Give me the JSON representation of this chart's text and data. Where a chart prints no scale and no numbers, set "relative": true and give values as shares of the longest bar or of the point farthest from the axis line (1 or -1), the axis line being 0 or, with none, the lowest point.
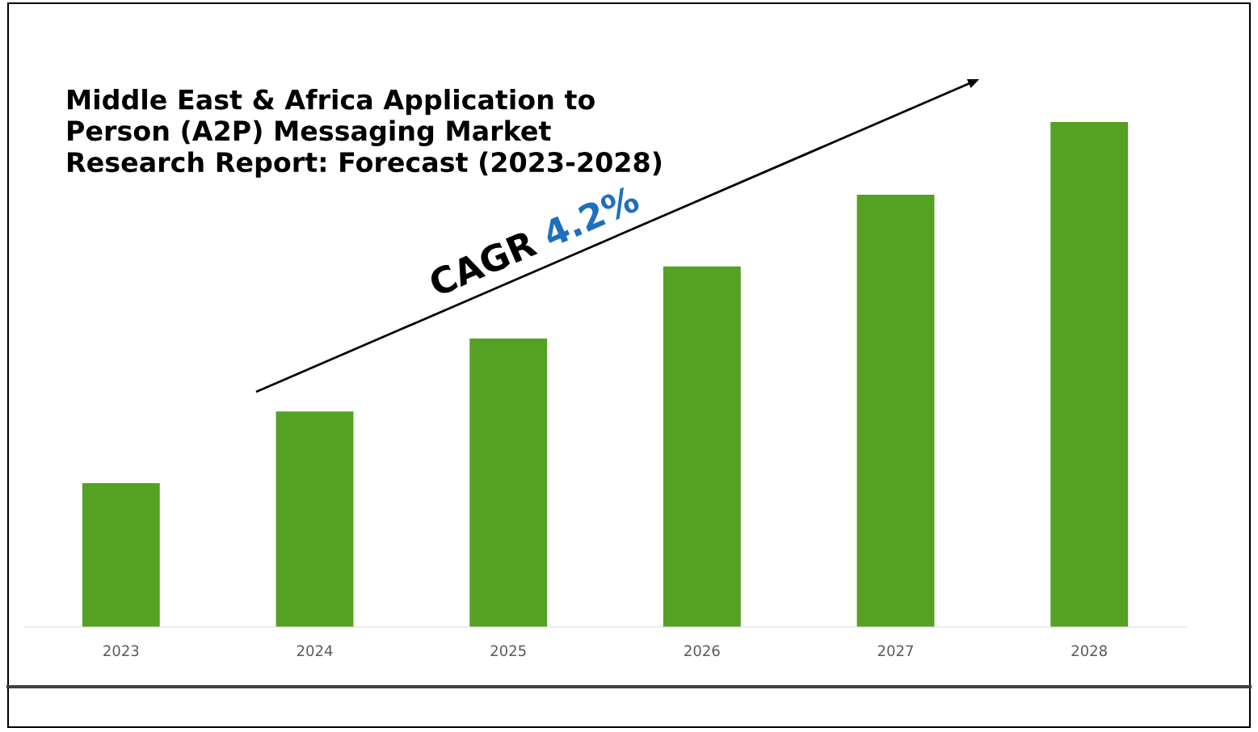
{
  "chart_data": {
    "type": "bar",
    "title": "Middle East & Africa Application to Person (A2P) Messaging Market Research Report: Forecast (2023-2028)",
    "categories": [
      "2023",
      "2024",
      "2025",
      "2026",
      "2027",
      "2028"
    ],
    "values": [
      0.285,
      0.427,
      0.571,
      0.714,
      0.856,
      1
    ],
    "color": "#55a124",
    "relative": true,
    "annotations": [
      "CAGR 4.2%"
    ]
  }
}
